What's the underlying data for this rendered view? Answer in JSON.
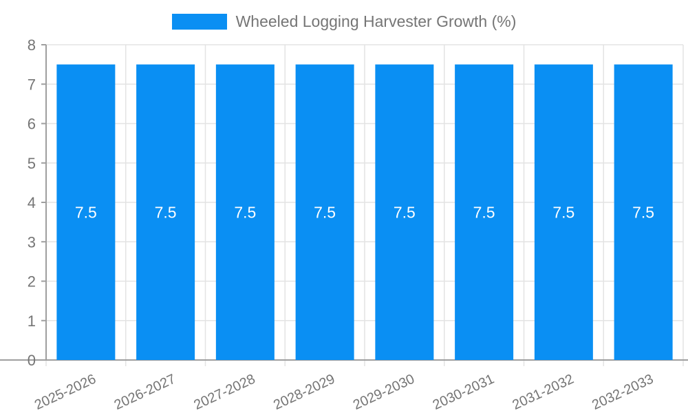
{
  "legend": {
    "title": "Wheeled Logging Harvester Growth (%)"
  },
  "chart_data": {
    "type": "bar",
    "title": "Wheeled Logging Harvester Growth (%)",
    "categories": [
      "2025-2026",
      "2026-2027",
      "2027-2028",
      "2028-2029",
      "2029-2030",
      "2030-2031",
      "2031-2032",
      "2032-2033"
    ],
    "values": [
      7.5,
      7.5,
      7.5,
      7.5,
      7.5,
      7.5,
      7.5,
      7.5
    ],
    "bar_labels": [
      "7.5",
      "7.5",
      "7.5",
      "7.5",
      "7.5",
      "7.5",
      "7.5",
      "7.5"
    ],
    "xlabel": "",
    "ylabel": "",
    "ylim": [
      0,
      8
    ],
    "yticks": [
      0,
      1,
      2,
      3,
      4,
      5,
      6,
      7,
      8
    ],
    "grid": true,
    "legend_position": "top",
    "colors": {
      "bar": "#0a8ff3",
      "bar_label": "#ffffff",
      "axis_text": "#757575",
      "grid_line": "#e3e3e3",
      "axis_line": "#9e9e9e",
      "background": "#ffffff"
    }
  }
}
